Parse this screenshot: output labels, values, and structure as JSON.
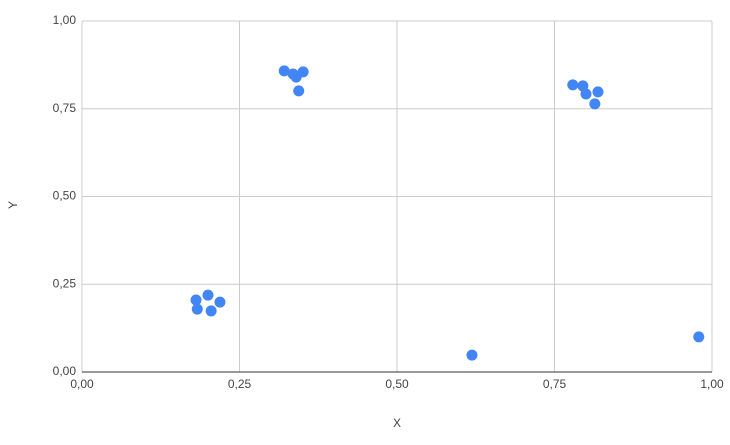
{
  "chart_data": {
    "type": "scatter",
    "x_label": "X",
    "y_label": "Y",
    "x": [
      0.321,
      0.335,
      0.34,
      0.351,
      0.344,
      0.779,
      0.795,
      0.8,
      0.819,
      0.814,
      0.181,
      0.2,
      0.219,
      0.183,
      0.205,
      0.619,
      0.979
    ],
    "values": [
      0.858,
      0.849,
      0.84,
      0.855,
      0.801,
      0.818,
      0.815,
      0.792,
      0.798,
      0.764,
      0.205,
      0.219,
      0.199,
      0.179,
      0.174,
      0.048,
      0.1
    ],
    "color": "#4285f4",
    "xlim": [
      0,
      1
    ],
    "ylim": [
      0,
      1
    ],
    "xticks": [
      {
        "value": 0,
        "label": "0,00"
      },
      {
        "value": 0.25,
        "label": "0,25"
      },
      {
        "value": 0.5,
        "label": "0,50"
      },
      {
        "value": 0.75,
        "label": "0,75"
      },
      {
        "value": 1,
        "label": "1,00"
      }
    ],
    "yticks": [
      {
        "value": 0,
        "label": "0,00"
      },
      {
        "value": 0.25,
        "label": "0,25"
      },
      {
        "value": 0.5,
        "label": "0,50"
      },
      {
        "value": 0.75,
        "label": "0,75"
      },
      {
        "value": 1,
        "label": "1,00"
      }
    ],
    "grid": true
  }
}
